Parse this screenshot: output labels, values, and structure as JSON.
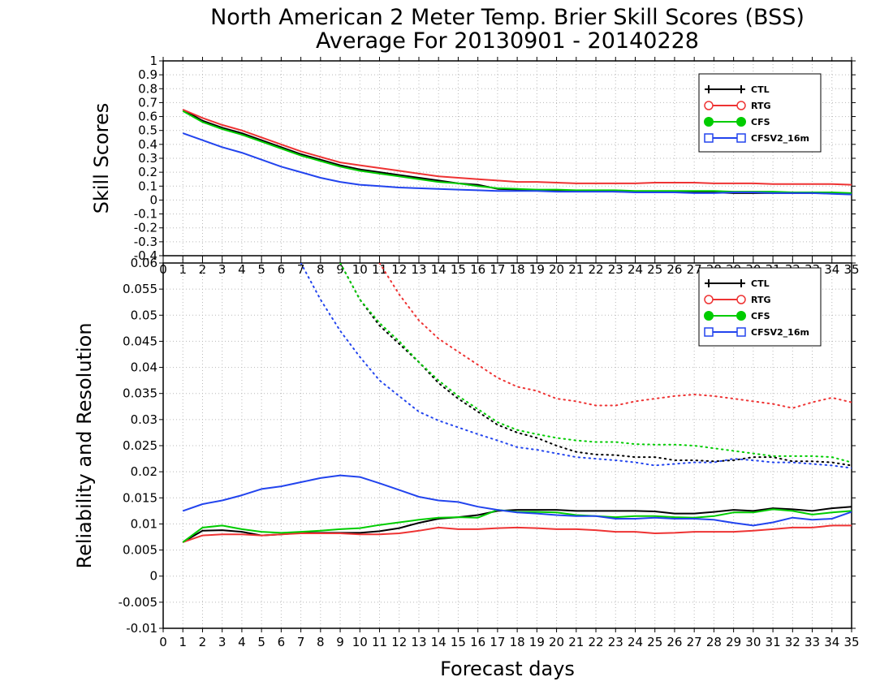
{
  "title_line1": "North American 2 Meter Temp. Brier Skill Scores (BSS)",
  "title_line2": "Average For 20130901 - 20140228",
  "chart_data": [
    {
      "id": "top",
      "type": "line",
      "ylabel": "Skill Scores",
      "xlabel": "",
      "xlim": [
        0,
        35
      ],
      "ylim": [
        -0.4,
        1
      ],
      "yticks": [
        "1",
        "0.9",
        "0.8",
        "0.7",
        "0.6",
        "0.5",
        "0.4",
        "0.3",
        "0.2",
        "0.1",
        "0",
        "-0.1",
        "-0.2",
        "-0.3",
        "-0.4"
      ],
      "ytick_values": [
        1,
        0.9,
        0.8,
        0.7,
        0.6,
        0.5,
        0.4,
        0.3,
        0.2,
        0.1,
        0,
        -0.1,
        -0.2,
        -0.3,
        -0.4
      ],
      "xticks": [
        0,
        1,
        2,
        3,
        4,
        5,
        6,
        7,
        8,
        9,
        10,
        11,
        12,
        13,
        14,
        15,
        16,
        17,
        18,
        19,
        20,
        21,
        22,
        23,
        24,
        25,
        26,
        27,
        28,
        29,
        30,
        31,
        32,
        33,
        34,
        35
      ],
      "grid": true,
      "legend_position": "top-right",
      "x": [
        1,
        2,
        3,
        4,
        5,
        6,
        7,
        8,
        9,
        10,
        11,
        12,
        13,
        14,
        15,
        16,
        17,
        18,
        19,
        20,
        21,
        22,
        23,
        24,
        25,
        26,
        27,
        28,
        29,
        30,
        31,
        32,
        33,
        34,
        35
      ],
      "series": [
        {
          "name": "CTL",
          "color": "#000000",
          "marker": "plus",
          "values": [
            0.65,
            0.57,
            0.52,
            0.48,
            0.43,
            0.38,
            0.33,
            0.29,
            0.25,
            0.22,
            0.2,
            0.18,
            0.16,
            0.14,
            0.12,
            0.11,
            0.08,
            0.075,
            0.07,
            0.07,
            0.065,
            0.065,
            0.06,
            0.06,
            0.06,
            0.06,
            0.055,
            0.055,
            0.05,
            0.05,
            0.05,
            0.05,
            0.05,
            0.05,
            0.045
          ]
        },
        {
          "name": "RTG",
          "color": "#ee3333",
          "marker": "circle",
          "values": [
            0.65,
            0.59,
            0.54,
            0.5,
            0.45,
            0.4,
            0.35,
            0.31,
            0.27,
            0.25,
            0.23,
            0.21,
            0.19,
            0.17,
            0.16,
            0.15,
            0.14,
            0.13,
            0.13,
            0.125,
            0.12,
            0.12,
            0.12,
            0.12,
            0.125,
            0.125,
            0.125,
            0.12,
            0.12,
            0.12,
            0.115,
            0.115,
            0.115,
            0.115,
            0.11
          ]
        },
        {
          "name": "CFS",
          "color": "#00cc00",
          "marker": "dot",
          "values": [
            0.64,
            0.56,
            0.51,
            0.47,
            0.42,
            0.37,
            0.32,
            0.28,
            0.24,
            0.21,
            0.19,
            0.17,
            0.15,
            0.13,
            0.12,
            0.1,
            0.085,
            0.08,
            0.075,
            0.075,
            0.07,
            0.07,
            0.07,
            0.065,
            0.065,
            0.065,
            0.065,
            0.065,
            0.06,
            0.06,
            0.06,
            0.055,
            0.055,
            0.055,
            0.05
          ]
        },
        {
          "name": "CFSV2_16m",
          "color": "#2244ee",
          "marker": "square",
          "values": [
            0.48,
            0.43,
            0.38,
            0.34,
            0.29,
            0.24,
            0.2,
            0.16,
            0.13,
            0.11,
            0.1,
            0.09,
            0.085,
            0.08,
            0.075,
            0.07,
            0.065,
            0.065,
            0.065,
            0.06,
            0.06,
            0.06,
            0.06,
            0.055,
            0.055,
            0.055,
            0.05,
            0.05,
            0.055,
            0.055,
            0.05,
            0.05,
            0.05,
            0.045,
            0.04
          ]
        }
      ]
    },
    {
      "id": "bottom",
      "type": "line",
      "ylabel": "Reliability and Resolution",
      "xlabel": "Forecast days",
      "xlim": [
        0,
        35
      ],
      "ylim": [
        -0.01,
        0.06
      ],
      "yticks": [
        "0.06",
        "0.055",
        "0.05",
        "0.045",
        "0.04",
        "0.035",
        "0.03",
        "0.025",
        "0.02",
        "0.015",
        "0.01",
        "0.005",
        "0",
        "-0.005",
        "-0.01"
      ],
      "ytick_values": [
        0.06,
        0.055,
        0.05,
        0.045,
        0.04,
        0.035,
        0.03,
        0.025,
        0.02,
        0.015,
        0.01,
        0.005,
        0,
        -0.005,
        -0.01
      ],
      "xticks": [
        0,
        1,
        2,
        3,
        4,
        5,
        6,
        7,
        8,
        9,
        10,
        11,
        12,
        13,
        14,
        15,
        16,
        17,
        18,
        19,
        20,
        21,
        22,
        23,
        24,
        25,
        26,
        27,
        28,
        29,
        30,
        31,
        32,
        33,
        34,
        35
      ],
      "grid": true,
      "legend_position": "top-right",
      "x": [
        1,
        2,
        3,
        4,
        5,
        6,
        7,
        8,
        9,
        10,
        11,
        12,
        13,
        14,
        15,
        16,
        17,
        18,
        19,
        20,
        21,
        22,
        23,
        24,
        25,
        26,
        27,
        28,
        29,
        30,
        31,
        32,
        33,
        34,
        35
      ],
      "series": [
        {
          "name": "CTL",
          "color": "#000000",
          "marker": "plus",
          "reliability": [
            0.0065,
            0.0087,
            0.0088,
            0.0085,
            0.0078,
            0.008,
            0.0083,
            0.0083,
            0.0083,
            0.0083,
            0.0086,
            0.0092,
            0.0102,
            0.011,
            0.0113,
            0.0117,
            0.0125,
            0.0127,
            0.0127,
            0.0127,
            0.0125,
            0.0125,
            0.0125,
            0.0125,
            0.0124,
            0.012,
            0.012,
            0.0123,
            0.0127,
            0.0125,
            0.013,
            0.0128,
            0.0125,
            0.013,
            0.0133
          ],
          "resolution": [
            null,
            null,
            null,
            null,
            null,
            null,
            null,
            null,
            0.06,
            0.053,
            0.048,
            0.0445,
            0.041,
            0.037,
            0.034,
            0.0315,
            0.029,
            0.0275,
            0.0265,
            0.025,
            0.0238,
            0.0233,
            0.0232,
            0.0228,
            0.0228,
            0.0222,
            0.0222,
            0.022,
            0.0222,
            0.0228,
            0.0228,
            0.022,
            0.022,
            0.0218,
            0.0212
          ]
        },
        {
          "name": "RTG",
          "color": "#ee3333",
          "marker": "circle",
          "reliability": [
            0.0065,
            0.0078,
            0.008,
            0.008,
            0.0078,
            0.008,
            0.0082,
            0.0082,
            0.0082,
            0.008,
            0.008,
            0.0082,
            0.0087,
            0.0093,
            0.009,
            0.009,
            0.0092,
            0.0093,
            0.0092,
            0.009,
            0.009,
            0.0088,
            0.0085,
            0.0085,
            0.0082,
            0.0083,
            0.0085,
            0.0085,
            0.0085,
            0.0087,
            0.009,
            0.0093,
            0.0093,
            0.0097,
            0.0097
          ],
          "resolution": [
            null,
            null,
            null,
            null,
            null,
            null,
            null,
            null,
            null,
            null,
            0.06,
            0.054,
            0.049,
            0.0455,
            0.043,
            0.0405,
            0.038,
            0.0363,
            0.0355,
            0.034,
            0.0335,
            0.0327,
            0.0327,
            0.0335,
            0.034,
            0.0345,
            0.0348,
            0.0345,
            0.034,
            0.0335,
            0.033,
            0.0322,
            0.0333,
            0.0342,
            0.0333
          ]
        },
        {
          "name": "CFS",
          "color": "#00cc00",
          "marker": "dot",
          "reliability": [
            0.0065,
            0.0093,
            0.0097,
            0.009,
            0.0085,
            0.0083,
            0.0085,
            0.0087,
            0.009,
            0.0092,
            0.0098,
            0.0103,
            0.0108,
            0.0112,
            0.0113,
            0.0112,
            0.0127,
            0.0123,
            0.0123,
            0.0122,
            0.0117,
            0.0115,
            0.0113,
            0.0115,
            0.0115,
            0.0113,
            0.0112,
            0.0115,
            0.0122,
            0.0122,
            0.0128,
            0.0125,
            0.0118,
            0.0122,
            0.0125
          ],
          "resolution": [
            null,
            null,
            null,
            null,
            null,
            null,
            null,
            null,
            0.06,
            0.053,
            0.0485,
            0.045,
            0.041,
            0.0375,
            0.0345,
            0.032,
            0.0295,
            0.028,
            0.0272,
            0.0265,
            0.026,
            0.0257,
            0.0257,
            0.0253,
            0.0252,
            0.0252,
            0.025,
            0.0245,
            0.024,
            0.0235,
            0.023,
            0.023,
            0.023,
            0.0228,
            0.0218
          ]
        },
        {
          "name": "CFSV2_16m",
          "color": "#2244ee",
          "marker": "square",
          "reliability": [
            0.0125,
            0.0138,
            0.0145,
            0.0155,
            0.0167,
            0.0172,
            0.018,
            0.0188,
            0.0193,
            0.019,
            0.0178,
            0.0165,
            0.0152,
            0.0145,
            0.0142,
            0.0133,
            0.0127,
            0.0122,
            0.012,
            0.0117,
            0.0115,
            0.0115,
            0.011,
            0.011,
            0.0112,
            0.011,
            0.011,
            0.0108,
            0.0102,
            0.0097,
            0.0103,
            0.0112,
            0.0108,
            0.011,
            0.0123
          ],
          "resolution": [
            null,
            null,
            null,
            null,
            null,
            null,
            0.06,
            0.053,
            0.047,
            0.042,
            0.0375,
            0.0345,
            0.0315,
            0.0298,
            0.0285,
            0.0272,
            0.026,
            0.0247,
            0.0242,
            0.0235,
            0.0228,
            0.0225,
            0.0222,
            0.0218,
            0.0212,
            0.0215,
            0.0218,
            0.0218,
            0.0225,
            0.0222,
            0.0218,
            0.0218,
            0.0215,
            0.0212,
            0.0207
          ]
        }
      ]
    }
  ]
}
